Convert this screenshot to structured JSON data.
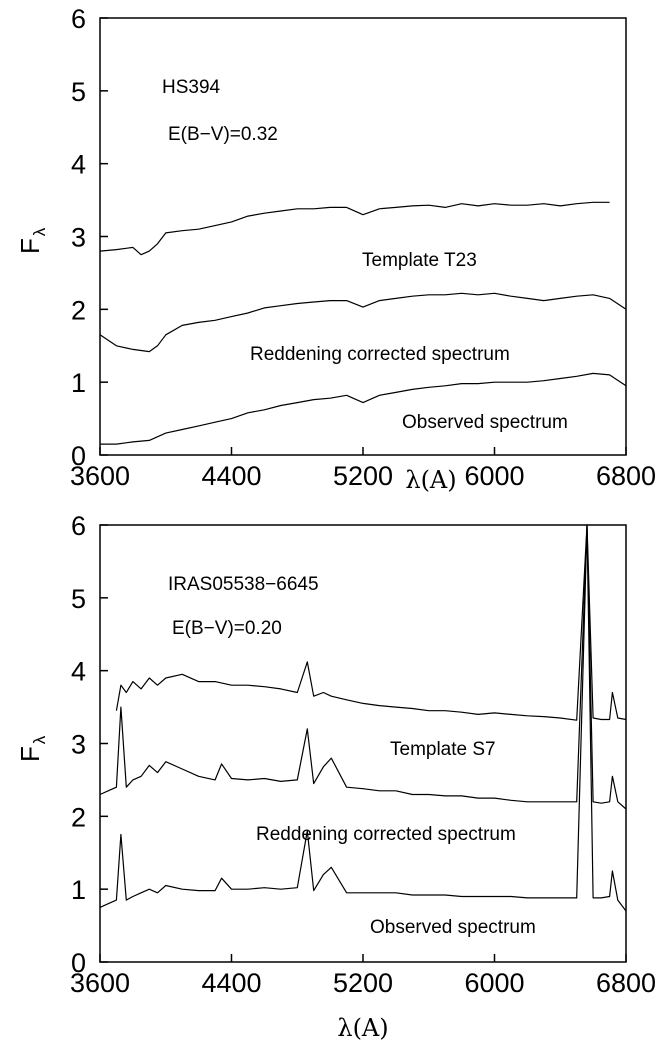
{
  "chart_data": [
    {
      "type": "line",
      "annotations": [
        "HS394",
        "E(B−V)=0.32"
      ],
      "xlabel": "λ(A)",
      "ylabel": "F",
      "ylabel_sub": "λ",
      "xlim": [
        3600,
        6800
      ],
      "ylim": [
        0,
        6
      ],
      "xticks": [
        3600,
        4400,
        5200,
        6000,
        6800
      ],
      "yticks": [
        0,
        1,
        2,
        3,
        4,
        5,
        6
      ],
      "series": [
        {
          "name": "Template T23",
          "x": [
            3600,
            3700,
            3800,
            3850,
            3900,
            3950,
            4000,
            4100,
            4200,
            4300,
            4400,
            4500,
            4600,
            4700,
            4800,
            4900,
            5000,
            5100,
            5200,
            5300,
            5400,
            5500,
            5600,
            5700,
            5800,
            5900,
            6000,
            6100,
            6200,
            6300,
            6400,
            6500,
            6600,
            6700
          ],
          "y": [
            2.8,
            2.82,
            2.85,
            2.75,
            2.8,
            2.9,
            3.05,
            3.08,
            3.1,
            3.15,
            3.2,
            3.28,
            3.32,
            3.35,
            3.38,
            3.38,
            3.4,
            3.4,
            3.3,
            3.38,
            3.4,
            3.42,
            3.43,
            3.4,
            3.45,
            3.42,
            3.45,
            3.43,
            3.43,
            3.45,
            3.42,
            3.45,
            3.47,
            3.47
          ]
        },
        {
          "name": "Reddening corrected spectrum",
          "x": [
            3600,
            3700,
            3800,
            3900,
            3950,
            4000,
            4100,
            4200,
            4300,
            4400,
            4500,
            4600,
            4700,
            4800,
            4900,
            5000,
            5100,
            5200,
            5300,
            5400,
            5500,
            5600,
            5700,
            5800,
            5900,
            6000,
            6100,
            6200,
            6300,
            6400,
            6500,
            6600,
            6700,
            6800
          ],
          "y": [
            1.65,
            1.5,
            1.45,
            1.42,
            1.5,
            1.65,
            1.78,
            1.82,
            1.85,
            1.9,
            1.95,
            2.02,
            2.05,
            2.08,
            2.1,
            2.12,
            2.12,
            2.03,
            2.12,
            2.15,
            2.18,
            2.2,
            2.2,
            2.22,
            2.2,
            2.22,
            2.18,
            2.15,
            2.12,
            2.15,
            2.18,
            2.2,
            2.15,
            2.0
          ]
        },
        {
          "name": "Observed spectrum",
          "x": [
            3600,
            3700,
            3800,
            3900,
            4000,
            4100,
            4200,
            4300,
            4400,
            4500,
            4600,
            4700,
            4800,
            4900,
            5000,
            5100,
            5200,
            5300,
            5400,
            5500,
            5600,
            5700,
            5800,
            5900,
            6000,
            6100,
            6200,
            6300,
            6400,
            6500,
            6600,
            6700,
            6800
          ],
          "y": [
            0.15,
            0.15,
            0.18,
            0.2,
            0.3,
            0.35,
            0.4,
            0.45,
            0.5,
            0.58,
            0.62,
            0.68,
            0.72,
            0.76,
            0.78,
            0.82,
            0.72,
            0.82,
            0.86,
            0.9,
            0.93,
            0.95,
            0.98,
            0.98,
            1.0,
            1.0,
            1.0,
            1.02,
            1.05,
            1.08,
            1.12,
            1.1,
            0.95
          ]
        }
      ],
      "labels": [
        "Template T23",
        "Reddening corrected spectrum",
        "Observed spectrum"
      ]
    },
    {
      "type": "line",
      "annotations": [
        "IRAS05538−6645",
        "E(B−V)=0.20"
      ],
      "xlabel": "λ(A)",
      "ylabel": "F",
      "ylabel_sub": "λ",
      "xlim": [
        3600,
        6800
      ],
      "ylim": [
        0,
        6
      ],
      "xticks": [
        3600,
        4400,
        5200,
        6000,
        6800
      ],
      "yticks": [
        0,
        1,
        2,
        3,
        4,
        5,
        6
      ],
      "series": [
        {
          "name": "Template S7",
          "x": [
            3700,
            3727,
            3760,
            3800,
            3850,
            3900,
            3950,
            4000,
            4100,
            4200,
            4300,
            4400,
            4500,
            4600,
            4700,
            4800,
            4861,
            4900,
            4959,
            5007,
            5100,
            5200,
            5300,
            5400,
            5500,
            5600,
            5700,
            5800,
            5900,
            6000,
            6100,
            6200,
            6300,
            6400,
            6500,
            6563,
            6600,
            6650,
            6700,
            6717,
            6750,
            6800
          ],
          "y": [
            3.45,
            3.8,
            3.7,
            3.85,
            3.75,
            3.9,
            3.8,
            3.9,
            3.95,
            3.85,
            3.85,
            3.8,
            3.8,
            3.78,
            3.75,
            3.7,
            4.12,
            3.65,
            3.7,
            3.65,
            3.6,
            3.55,
            3.52,
            3.5,
            3.48,
            3.45,
            3.45,
            3.43,
            3.4,
            3.42,
            3.4,
            3.38,
            3.37,
            3.35,
            3.32,
            6.0,
            3.35,
            3.33,
            3.33,
            3.7,
            3.35,
            3.33
          ]
        },
        {
          "name": "Reddening corrected spectrum",
          "x": [
            3600,
            3650,
            3700,
            3727,
            3760,
            3800,
            3850,
            3900,
            3950,
            4000,
            4100,
            4200,
            4300,
            4340,
            4400,
            4500,
            4600,
            4700,
            4800,
            4861,
            4900,
            4959,
            5007,
            5100,
            5200,
            5300,
            5400,
            5500,
            5600,
            5700,
            5800,
            5900,
            6000,
            6100,
            6200,
            6300,
            6400,
            6500,
            6563,
            6600,
            6650,
            6700,
            6717,
            6750,
            6800
          ],
          "y": [
            2.3,
            2.35,
            2.4,
            3.5,
            2.4,
            2.5,
            2.55,
            2.7,
            2.6,
            2.75,
            2.65,
            2.55,
            2.5,
            2.72,
            2.52,
            2.5,
            2.52,
            2.48,
            2.5,
            3.2,
            2.45,
            2.68,
            2.8,
            2.4,
            2.38,
            2.35,
            2.35,
            2.3,
            2.3,
            2.28,
            2.28,
            2.25,
            2.25,
            2.22,
            2.2,
            2.2,
            2.2,
            2.2,
            6.0,
            2.2,
            2.18,
            2.2,
            2.55,
            2.2,
            2.1
          ]
        },
        {
          "name": "Observed spectrum",
          "x": [
            3600,
            3650,
            3700,
            3727,
            3760,
            3800,
            3850,
            3900,
            3950,
            4000,
            4100,
            4200,
            4300,
            4340,
            4400,
            4500,
            4600,
            4700,
            4800,
            4861,
            4900,
            4959,
            5007,
            5100,
            5200,
            5300,
            5400,
            5500,
            5600,
            5700,
            5800,
            5900,
            6000,
            6100,
            6200,
            6300,
            6400,
            6500,
            6563,
            6600,
            6650,
            6700,
            6717,
            6750,
            6800
          ],
          "y": [
            0.75,
            0.8,
            0.85,
            1.75,
            0.85,
            0.9,
            0.95,
            1.0,
            0.95,
            1.05,
            1.0,
            0.98,
            0.98,
            1.15,
            1.0,
            1.0,
            1.02,
            1.0,
            1.02,
            1.8,
            0.98,
            1.2,
            1.3,
            0.95,
            0.95,
            0.95,
            0.95,
            0.92,
            0.92,
            0.92,
            0.9,
            0.9,
            0.9,
            0.9,
            0.88,
            0.88,
            0.88,
            0.88,
            6.0,
            0.88,
            0.88,
            0.9,
            1.25,
            0.85,
            0.7
          ]
        }
      ],
      "labels": [
        "Template S7",
        "Reddening corrected spectrum",
        "Observed spectrum"
      ]
    }
  ]
}
